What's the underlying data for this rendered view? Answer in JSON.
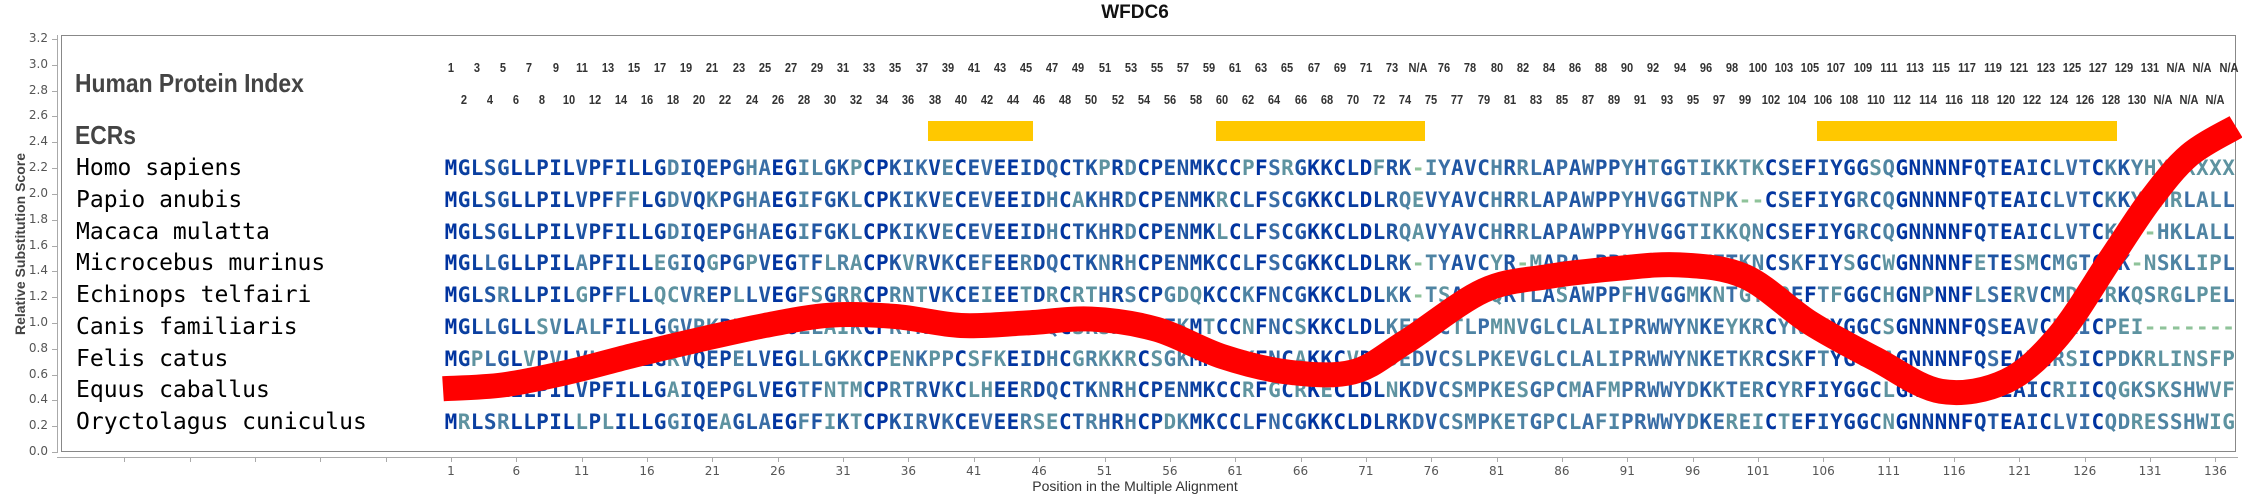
{
  "chart_data": {
    "type": "line",
    "title": "WFDC6",
    "xlabel": "Position in the Multiple Alignment",
    "ylabel": "Relative Substitution Score",
    "ylim": [
      0.0,
      3.2
    ],
    "yticks": [
      "0.0",
      "0.2",
      "0.4",
      "0.6",
      "0.8",
      "1.0",
      "1.2",
      "1.4",
      "1.6",
      "1.8",
      "2.0",
      "2.2",
      "2.4",
      "2.6",
      "2.8",
      "3.0",
      "3.2"
    ],
    "xticks": [
      1,
      6,
      11,
      16,
      21,
      26,
      31,
      36,
      41,
      46,
      51,
      56,
      61,
      66,
      71,
      76,
      81,
      86,
      91,
      96,
      101,
      106,
      111,
      116,
      121,
      126,
      131,
      136
    ],
    "grid": false,
    "series": [
      {
        "color": "#ff0000",
        "x": [
          1,
          5,
          10,
          15,
          20,
          25,
          30,
          35,
          40,
          45,
          50,
          55,
          60,
          65,
          70,
          74,
          80,
          85,
          90,
          95,
          100,
          105,
          110,
          115,
          120,
          124,
          128,
          131,
          134,
          137
        ],
        "y": [
          0.49,
          0.52,
          0.62,
          0.75,
          0.87,
          0.98,
          1.06,
          1.05,
          0.98,
          1.0,
          1.03,
          0.95,
          0.74,
          0.62,
          0.62,
          0.85,
          1.25,
          1.36,
          1.42,
          1.45,
          1.36,
          1.0,
          0.72,
          0.47,
          0.55,
          0.9,
          1.5,
          1.95,
          2.3,
          2.52
        ]
      }
    ]
  },
  "labels": {
    "human_protein_index": "Human Protein Index",
    "ecrs": "ECRs"
  },
  "human_protein_index": [
    "1",
    "2",
    "3",
    "4",
    "5",
    "6",
    "7",
    "8",
    "9",
    "10",
    "11",
    "12",
    "13",
    "14",
    "15",
    "16",
    "17",
    "18",
    "19",
    "20",
    "21",
    "22",
    "23",
    "24",
    "25",
    "26",
    "27",
    "28",
    "29",
    "30",
    "31",
    "32",
    "33",
    "34",
    "35",
    "36",
    "37",
    "38",
    "39",
    "40",
    "41",
    "42",
    "43",
    "44",
    "45",
    "46",
    "47",
    "48",
    "49",
    "50",
    "51",
    "52",
    "53",
    "54",
    "55",
    "56",
    "57",
    "58",
    "59",
    "60",
    "61",
    "62",
    "63",
    "64",
    "65",
    "66",
    "67",
    "68",
    "69",
    "70",
    "71",
    "72",
    "73",
    "74",
    "N/A",
    "75",
    "76",
    "77",
    "78",
    "79",
    "80",
    "81",
    "82",
    "83",
    "84",
    "85",
    "86",
    "87",
    "88",
    "89",
    "90",
    "91",
    "92",
    "93",
    "94",
    "95",
    "96",
    "97",
    "98",
    "99",
    "100",
    "102",
    "103",
    "104",
    "105",
    "106",
    "107",
    "108",
    "109",
    "110",
    "111",
    "112",
    "113",
    "114",
    "115",
    "116",
    "117",
    "118",
    "119",
    "120",
    "121",
    "122",
    "123",
    "124",
    "125",
    "126",
    "127",
    "128",
    "129",
    "130",
    "131",
    "N/A",
    "N/A",
    "N/A",
    "N/A",
    "N/A",
    "N/A"
  ],
  "ecrs": [
    {
      "start": 38,
      "end": 45,
      "color": "#ffc800"
    },
    {
      "start": 60,
      "end": 75,
      "color": "#ffc800"
    },
    {
      "start": 106,
      "end": 128,
      "color": "#ffc800"
    }
  ],
  "alignment": [
    {
      "species": "Homo sapiens",
      "sequence": "MGLSGLLPILVPFILLGDIQEPGHAEGILGKPCPKIKVECEVEEIDQCTKPRDCPENMKCCPFSRGKKCLDFRK-IYAVCHRRLAPAWPPYHTGGTIKKTKCSEFIYGGSQGNNNNFQTEAICLVTCKKYHXXXXXX"
    },
    {
      "species": "Papio anubis",
      "sequence": "MGLSGLLPILVPFFFLGDVQKPGHAEGIFGKLCPKIKVECEVEEIDHCAKHRDCPENMKRCLFSCGKKCLDLRQEVYAVCHRRLAPAWPPYHVGGTNPK--CSEFIYGRCQGNNNNFQTEAICLVTCKKYPHRLALL"
    },
    {
      "species": "Macaca mulatta",
      "sequence": "MGLSGLLPILVPFILLGDIQEPGHAEGIFGKLCPKIKVECEVEEIDHCTKHRDCPENMKLCLFSCGKKCLDLRQAVYAVCHRRLAPAWPPYHVGGTIKKQNCSEFIYGRCQGNNNNFQTEAICLVTCKKY-HKLALL"
    },
    {
      "species": "Microcebus murinus",
      "sequence": "MGLLGLLPILAPFILLEGIQGPGPVEGTFLRACPKVRVKCEFEERDQCTKNRHCPENMKCCLFSCGKKCLDLRK-TYAVCYR-MAPA-PPLHAGGIKETKNCSKFIYSGCWGNNNNFETESMCMGTCHK-NSKLIPL"
    },
    {
      "species": "Echinops telfairi",
      "sequence": "MGLSRLLPILGPFFLLQCVREPLLVEGFSGRRCPRNTVKCEIEETDRCRTHRSCPGDQKCCKFNCGKKCLDLKK-TSAVCQRTLASAWPPFHVGGMKNTGTCQEFTFGGCHGNPNNFLSERVCMDSCRKQSRGLPEL"
    },
    {
      "species": "Canis familiaris",
      "sequence": "MGLLGLLSVLALFILLGGVRKPELVEGLLAIKCPRTRIPCRYREIDQCSRSKSCPEKMTCCNFNCSKKCLDLKEDICTLPMNVGLCLALIPRWWYNKEYKRCYRFNYGGCSGNNNNFQSEAVCRAICPEI-------"
    },
    {
      "species": "Felis catus",
      "sequence": "MGPLGLVPVLVLFILLGRVQEPELVEGLLGKKCPENKPPCSFKEIDHCGRKKRCSGKMKCCKFNCAKKCVDPDEDVCSLPKEVGLCLALIPRWWYNKETKRCSKFTYGGCAGNNNNFQSEAVCRSICPDKRLINSFP"
    },
    {
      "species": "Equus caballus",
      "sequence": "MGLLRLLPILVPFILLGAIQEPGLVEGTFNTMCPRTRVKCLHEERDQCTKNRHCPENMKCCRFGCRKECLDLNKDVCSMPKESGPCMAFMPRWWYDKKTERCYRFIYGGCLGNNNNFQSEAICRIICQGKSKSHWVF"
    },
    {
      "species": "Oryctolagus cuniculus",
      "sequence": "MRLSRLLPILLPLILLGGIQEAGLAEGFFIKTCPKIRVKCEVEERSECTRHRHCPDKMKCCLFNCGKKCLDLRKDVCSMPKETGPCLAFIPRWWYDKEREICTEFIYGGCNGNNNNFQTEAICLVICQDRESSHWIG"
    }
  ],
  "palette": {
    "conserved": "#0033a0",
    "high": "#0a3fa0",
    "medium": "#1f55a3",
    "low": "#3a6ea6",
    "lower": "#4f84a3",
    "variable": "#5e93a0",
    "gap": "#8fc39a"
  }
}
